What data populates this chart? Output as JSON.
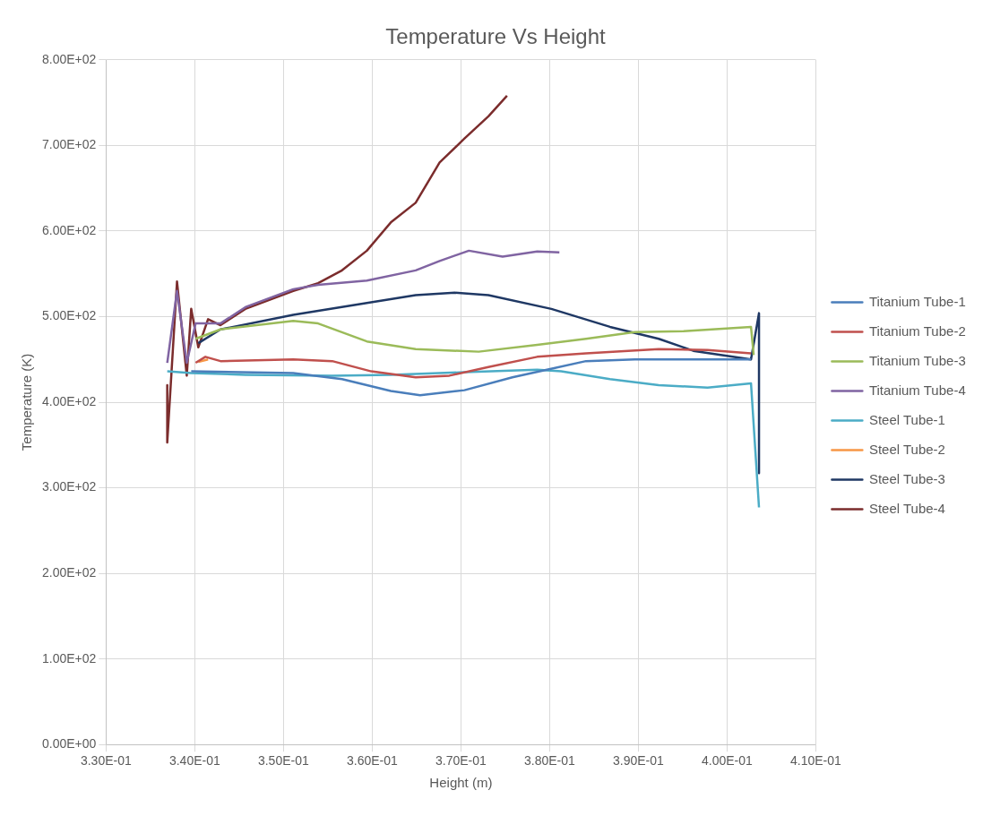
{
  "chart_data": {
    "type": "line",
    "title": "Temperature Vs Height",
    "xlabel": "Height (m)",
    "ylabel": "Temperature (K)",
    "xlim": [
      0.33,
      0.41
    ],
    "xticks": [
      {
        "value": 0.33,
        "label": "3.30E-01"
      },
      {
        "value": 0.34,
        "label": "3.40E-01"
      },
      {
        "value": 0.35,
        "label": "3.50E-01"
      },
      {
        "value": 0.36,
        "label": "3.60E-01"
      },
      {
        "value": 0.37,
        "label": "3.70E-01"
      },
      {
        "value": 0.38,
        "label": "3.80E-01"
      },
      {
        "value": 0.39,
        "label": "3.90E-01"
      },
      {
        "value": 0.4,
        "label": "4.00E-01"
      },
      {
        "value": 0.41,
        "label": "4.10E-01"
      }
    ],
    "ylim": [
      0,
      800
    ],
    "yticks": [
      {
        "value": 0,
        "label": "0.00E+00"
      },
      {
        "value": 100,
        "label": "1.00E+02"
      },
      {
        "value": 200,
        "label": "2.00E+02"
      },
      {
        "value": 300,
        "label": "3.00E+02"
      },
      {
        "value": 400,
        "label": "4.00E+02"
      },
      {
        "value": 500,
        "label": "5.00E+02"
      },
      {
        "value": 600,
        "label": "6.00E+02"
      },
      {
        "value": 700,
        "label": "7.00E+02"
      },
      {
        "value": 800,
        "label": "8.00E+02"
      }
    ],
    "grid": true,
    "legend": "right",
    "marker": "none",
    "line_style": "solid",
    "series": [
      {
        "name": "Titanium Tube-1",
        "color": "#4a7ebb",
        "x": [
          0.3396,
          0.3511,
          0.3566,
          0.3621,
          0.3654,
          0.3704,
          0.3758,
          0.3797,
          0.3841,
          0.3896,
          0.4027
        ],
        "values": [
          436,
          434,
          427,
          413,
          408,
          414,
          429,
          438,
          448,
          450,
          450
        ]
      },
      {
        "name": "Titanium Tube-2",
        "color": "#c0504d",
        "x": [
          0.3401,
          0.3412,
          0.3429,
          0.3511,
          0.3555,
          0.3599,
          0.3649,
          0.3687,
          0.3731,
          0.3786,
          0.3841,
          0.3923,
          0.3978,
          0.4027
        ],
        "values": [
          446,
          453,
          448,
          450,
          448,
          436,
          429,
          431,
          441,
          453,
          457,
          462,
          461,
          457
        ]
      },
      {
        "name": "Titanium Tube-3",
        "color": "#9bbb59",
        "x": [
          0.3401,
          0.3429,
          0.3511,
          0.3539,
          0.3594,
          0.3649,
          0.372,
          0.3786,
          0.3841,
          0.3896,
          0.3951,
          0.4027,
          0.403
        ],
        "values": [
          474,
          485,
          495,
          492,
          471,
          462,
          459,
          467,
          474,
          482,
          483,
          488,
          455
        ]
      },
      {
        "name": "Titanium Tube-4",
        "color": "#8064a2",
        "x": [
          0.3369,
          0.338,
          0.3391,
          0.3401,
          0.3429,
          0.3457,
          0.3511,
          0.3539,
          0.3594,
          0.3649,
          0.3676,
          0.3709,
          0.3747,
          0.3786,
          0.3811
        ],
        "values": [
          446,
          530,
          446,
          492,
          492,
          511,
          532,
          537,
          542,
          554,
          565,
          577,
          570,
          576,
          575
        ]
      },
      {
        "name": "Steel Tube-1",
        "color": "#4bacc6",
        "x": [
          0.3369,
          0.3396,
          0.3457,
          0.3555,
          0.3621,
          0.3704,
          0.3786,
          0.3813,
          0.3868,
          0.3923,
          0.3978,
          0.4027,
          0.4036
        ],
        "values": [
          436,
          434,
          432,
          431,
          432,
          435,
          438,
          436,
          427,
          420,
          417,
          422,
          277
        ]
      },
      {
        "name": "Steel Tube-2",
        "color": "#f79646",
        "x": [
          0.3404,
          0.3415
        ],
        "values": [
          447,
          450
        ]
      },
      {
        "name": "Steel Tube-3",
        "color": "#1f3864",
        "x": [
          0.3404,
          0.3429,
          0.3511,
          0.3594,
          0.3649,
          0.3693,
          0.3731,
          0.3802,
          0.3868,
          0.3923,
          0.3962,
          0.4027,
          0.4036,
          0.4036
        ],
        "values": [
          469,
          485,
          502,
          516,
          525,
          528,
          525,
          509,
          488,
          474,
          460,
          450,
          504,
          317
        ]
      },
      {
        "name": "Steel Tube-4",
        "color": "#7b2c2c",
        "x": [
          0.3369,
          0.3369,
          0.338,
          0.3391,
          0.3396,
          0.3404,
          0.3415,
          0.3429,
          0.3457,
          0.3511,
          0.3539,
          0.3566,
          0.3594,
          0.3621,
          0.3649,
          0.3676,
          0.3704,
          0.3731,
          0.3752
        ],
        "values": [
          420,
          353,
          541,
          431,
          509,
          464,
          497,
          490,
          509,
          530,
          539,
          554,
          577,
          610,
          633,
          680,
          708,
          734,
          758
        ]
      }
    ]
  }
}
